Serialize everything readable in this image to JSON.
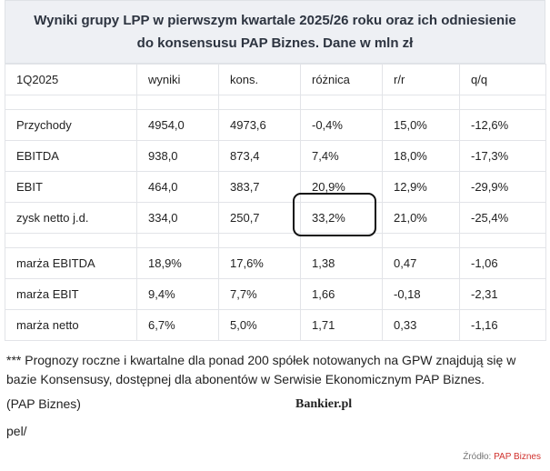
{
  "table": {
    "title": "Wyniki grupy LPP w pierwszym kwartale 2025/26 roku oraz ich odniesienie do konsensusu PAP Biznes. Dane w mln zł",
    "header": [
      "1Q2025",
      "wyniki",
      "kons.",
      "różnica",
      "r/r",
      "q/q"
    ],
    "rows": [
      [
        "Przychody",
        "4954,0",
        "4973,6",
        "-0,4%",
        "15,0%",
        "-12,6%"
      ],
      [
        "EBITDA",
        "938,0",
        "873,4",
        "7,4%",
        "18,0%",
        "-17,3%"
      ],
      [
        "EBIT",
        "464,0",
        "383,7",
        "20,9%",
        "12,9%",
        "-29,9%"
      ],
      [
        "zysk netto j.d.",
        "334,0",
        "250,7",
        "33,2%",
        "21,0%",
        "-25,4%"
      ]
    ],
    "margin_rows": [
      [
        "marża EBITDA",
        "18,9%",
        "17,6%",
        "1,38",
        "0,47",
        "-1,06"
      ],
      [
        "marża EBIT",
        "9,4%",
        "7,7%",
        "1,66",
        "-0,18",
        "-2,31"
      ],
      [
        "marża netto",
        "6,7%",
        "5,0%",
        "1,71",
        "0,33",
        "-1,16"
      ]
    ]
  },
  "note": "*** Prognozy roczne i kwartalne dla ponad 200 spółek notowanych na GPW znajdują się w bazie Konsensusy, dostępnej dla abonentów w Serwisie Ekonomicznym PAP Biznes.",
  "source_agency": "(PAP Biznes)",
  "logo": "Bankier.pl",
  "signature": "pel/",
  "footer": {
    "label": "Źródło:",
    "source": "PAP Biznes"
  }
}
